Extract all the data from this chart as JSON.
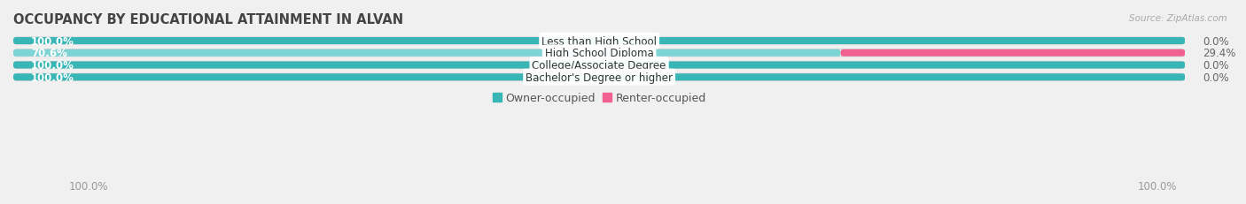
{
  "title": "OCCUPANCY BY EDUCATIONAL ATTAINMENT IN ALVAN",
  "source": "Source: ZipAtlas.com",
  "categories": [
    "Less than High School",
    "High School Diploma",
    "College/Associate Degree",
    "Bachelor's Degree or higher"
  ],
  "owner_values": [
    100.0,
    70.6,
    100.0,
    100.0
  ],
  "renter_values": [
    0.0,
    29.4,
    0.0,
    0.0
  ],
  "owner_color": "#38b6b6",
  "owner_light_color": "#7dd4d4",
  "renter_color": "#f06090",
  "renter_light_color": "#f0a0c0",
  "bar_height": 0.58,
  "bg_bar_color": "#e8e8e8",
  "background_color": "#f0f0f0",
  "title_fontsize": 10.5,
  "label_fontsize": 8.5,
  "value_fontsize": 8.5,
  "tick_fontsize": 8.5,
  "legend_fontsize": 9,
  "xlim_max": 100,
  "x_axis_label_left": "100.0%",
  "x_axis_label_right": "100.0%"
}
